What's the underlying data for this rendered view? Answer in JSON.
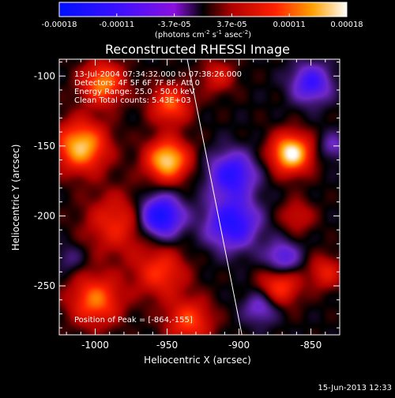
{
  "chart_data": {
    "type": "heatmap",
    "title": "Reconstructed RHESSI Image",
    "xlabel": "Heliocentric X (arcsec)",
    "ylabel": "Heliocentric Y (arcsec)",
    "xlim": [
      -1025,
      -830
    ],
    "ylim": [
      -285,
      -88
    ],
    "xticks": [
      -1000,
      -950,
      -900,
      -850
    ],
    "yticks": [
      -100,
      -150,
      -200,
      -250
    ],
    "colorbar": {
      "range": [
        -0.00018,
        0.00018
      ],
      "ticks": [
        "-0.00018",
        "-0.00011",
        "-3.7e-05",
        "3.7e-05",
        "0.00011",
        "0.00018"
      ],
      "label": "(photons cm",
      "label_sup1": "-2",
      "label_mid": " s",
      "label_sup2": "-1",
      "label_end": " asec",
      "label_sup3": "-2",
      "label_close": ")"
    },
    "annotations": [
      "13-Jul-2004 07:34:32.000 to 07:38:26.000",
      "Detectors: 4F 5F 6F 7F 8F, Att 0",
      "Energy Range: 25.0 - 50.0 keV",
      "Clean     Total counts: 5.43E+03"
    ],
    "peak_label": "Position of Peak = [-864,-155]",
    "peak": [
      -864,
      -155
    ],
    "limb_line": {
      "x1": -936,
      "y1": -88,
      "x2": -898,
      "y2": -285
    },
    "date_stamp": "15-Jun-2013 12:33",
    "blobs": [
      {
        "x": -864,
        "y": -155,
        "v": 1.0,
        "r": 14
      },
      {
        "x": -950,
        "y": -160,
        "v": 0.9,
        "r": 15
      },
      {
        "x": -948,
        "y": -120,
        "v": 0.6,
        "r": 14
      },
      {
        "x": -1010,
        "y": -150,
        "v": 0.85,
        "r": 18
      },
      {
        "x": -995,
        "y": -105,
        "v": 0.7,
        "r": 15
      },
      {
        "x": -985,
        "y": -205,
        "v": 0.45,
        "r": 22
      },
      {
        "x": -1000,
        "y": -260,
        "v": 0.65,
        "r": 18
      },
      {
        "x": -955,
        "y": -240,
        "v": 0.5,
        "r": 18
      },
      {
        "x": -935,
        "y": -275,
        "v": 0.55,
        "r": 16
      },
      {
        "x": -915,
        "y": -100,
        "v": 0.35,
        "r": 12
      },
      {
        "x": -872,
        "y": -250,
        "v": 0.55,
        "r": 14
      },
      {
        "x": -840,
        "y": -240,
        "v": 0.4,
        "r": 12
      },
      {
        "x": -860,
        "y": -200,
        "v": 0.3,
        "r": 12
      },
      {
        "x": -905,
        "y": -170,
        "v": -0.7,
        "r": 16
      },
      {
        "x": -955,
        "y": -200,
        "v": -0.9,
        "r": 15
      },
      {
        "x": -905,
        "y": -205,
        "v": -0.75,
        "r": 18
      },
      {
        "x": -850,
        "y": -105,
        "v": -0.6,
        "r": 14
      },
      {
        "x": -870,
        "y": -230,
        "v": -0.5,
        "r": 12
      },
      {
        "x": -885,
        "y": -265,
        "v": -0.4,
        "r": 12
      },
      {
        "x": -1018,
        "y": -230,
        "v": -0.2,
        "r": 10
      },
      {
        "x": -835,
        "y": -150,
        "v": -0.3,
        "r": 10
      }
    ]
  }
}
